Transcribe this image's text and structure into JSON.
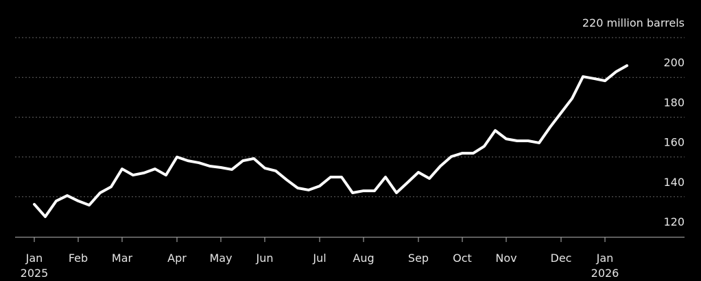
{
  "chart_data": {
    "type": "line",
    "x": [
      0,
      1,
      2,
      3,
      4,
      5,
      6,
      7,
      8,
      9,
      10,
      11,
      12,
      13,
      14,
      15,
      16,
      17,
      18,
      19,
      20,
      21,
      22,
      23,
      24,
      25,
      26,
      27,
      28,
      29,
      30,
      31,
      32,
      33,
      34,
      35,
      36,
      37,
      38,
      39,
      40,
      41,
      42,
      43,
      44,
      45,
      46,
      47,
      48,
      49,
      50,
      51,
      52,
      53,
      54
    ],
    "series": [
      {
        "color": "#ffffff",
        "values": [
          136.2,
          130,
          137.9,
          140.6,
          137.9,
          135.8,
          142,
          145,
          154,
          150.9,
          152,
          154,
          150.9,
          160,
          158.1,
          157.1,
          155.4,
          154.7,
          153.7,
          158.1,
          159.2,
          154.4,
          153,
          148.5,
          144.4,
          143.4,
          145.4,
          149.9,
          149.9,
          142,
          143,
          143,
          149.9,
          142,
          147.1,
          152.3,
          149.2,
          155.4,
          160.2,
          161.9,
          161.9,
          165.4,
          173.3,
          169.1,
          168.1,
          168.1,
          167.1,
          175,
          182.2,
          189.4,
          200.4,
          199.4,
          198.3,
          202.8,
          205.9
        ]
      }
    ],
    "xlim": [
      -1.75,
      59.25
    ],
    "xticks": [
      {
        "value": 0,
        "label": "Jan"
      },
      {
        "value": 4,
        "label": "Feb"
      },
      {
        "value": 8,
        "label": "Mar"
      },
      {
        "value": 13,
        "label": "Apr"
      },
      {
        "value": 17,
        "label": "May"
      },
      {
        "value": 21,
        "label": "Jun"
      },
      {
        "value": 26,
        "label": "Jul"
      },
      {
        "value": 30,
        "label": "Aug"
      },
      {
        "value": 35,
        "label": "Sep"
      },
      {
        "value": 39,
        "label": "Oct"
      },
      {
        "value": 43,
        "label": "Nov"
      },
      {
        "value": 48,
        "label": "Dec"
      },
      {
        "value": 52,
        "label": "Jan"
      }
    ],
    "year_labels": [
      {
        "value": 0,
        "label": "2025"
      },
      {
        "value": 52,
        "label": "2026"
      }
    ],
    "ylim": [
      120,
      220
    ],
    "yticks": [
      120,
      140,
      160,
      180,
      200,
      {
        "value": 220,
        "label": "220 million barrels"
      }
    ],
    "grid": true
  }
}
